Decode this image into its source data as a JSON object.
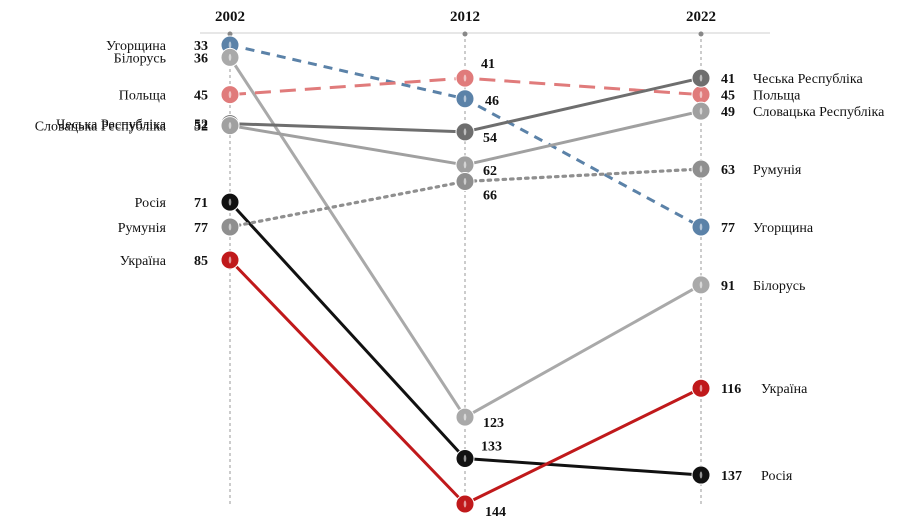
{
  "chart_data": {
    "type": "line",
    "title": "",
    "x": [
      "2002",
      "2012",
      "2022"
    ],
    "y_inverted": true,
    "grid": false,
    "series": [
      {
        "name": "Угорщина",
        "values": [
          33,
          46,
          77
        ],
        "color": "#5b82a8",
        "dash": "dashed"
      },
      {
        "name": "Білорусь",
        "values": [
          36,
          123,
          91
        ],
        "color": "#a9a9a9",
        "dash": "solid"
      },
      {
        "name": "Польща",
        "values": [
          45,
          41,
          45
        ],
        "color": "#e07b7b",
        "dash": "longdash"
      },
      {
        "name": "Чеська Республіка",
        "values": [
          52,
          54,
          41
        ],
        "color": "#6e6e6e",
        "dash": "solid"
      },
      {
        "name": "Словацька Республіка",
        "values": [
          52,
          62,
          49
        ],
        "color": "#a0a0a0",
        "dash": "solid"
      },
      {
        "name": "Росія",
        "values": [
          71,
          133,
          137
        ],
        "color": "#111111",
        "dash": "solid"
      },
      {
        "name": "Румунія",
        "values": [
          77,
          66,
          63
        ],
        "color": "#8f8f8f",
        "dash": "dotted"
      },
      {
        "name": "Україна",
        "values": [
          85,
          144,
          116
        ],
        "color": "#c0191b",
        "dash": "solid"
      }
    ]
  }
}
